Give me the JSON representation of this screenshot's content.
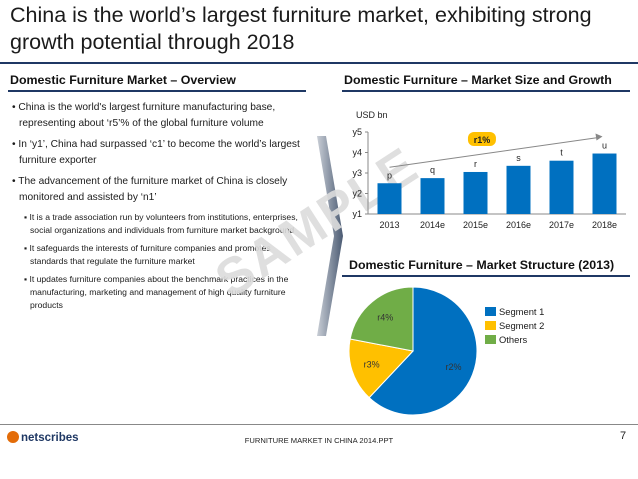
{
  "title": "China is the world’s largest furniture market, exhibiting strong growth potential through 2018",
  "left_section": {
    "heading": "Domestic Furniture Market – Overview",
    "bullets": [
      "China is the world's largest furniture manufacturing base, representing about ‘r5’% of the global furniture volume",
      "In ‘y1’, China had surpassed ‘c1’ to become the world’s largest furniture exporter",
      "The advancement of the furniture market of China is closely monitored and assisted by ‘n1’"
    ],
    "sub_bullets": [
      "It is a trade association run by volunteers from institutions, enterprises, social organizations and individuals from furniture market background",
      "It safeguards the interests of furniture companies and promotes standards that regulate the furniture market",
      "It updates furniture companies about the benchmark practices in the manufacturing, marketing and management of high quality furniture products"
    ]
  },
  "right_section": {
    "bar_heading": "Domestic Furniture – Market Size and Growth",
    "pie_heading": "Domestic Furniture – Market Structure (2013)"
  },
  "watermark": "SAMPLE",
  "chart_data": [
    {
      "type": "bar",
      "unit_label": "USD bn",
      "categories": [
        "2013",
        "2014e",
        "2015e",
        "2016e",
        "2017e",
        "2018e"
      ],
      "values": [
        2.5,
        2.75,
        3.05,
        3.35,
        3.6,
        3.95
      ],
      "data_labels": [
        "p",
        "q",
        "r",
        "s",
        "t",
        "u"
      ],
      "y_ticks": [
        "y1",
        "y2",
        "y3",
        "y4",
        "y5"
      ],
      "ylim": [
        1,
        5
      ],
      "growth_label": "r1%",
      "bar_color": "#0070c0",
      "grid": false
    },
    {
      "type": "pie",
      "labels": [
        "Segment 1",
        "Segment 2",
        "Others"
      ],
      "values": [
        62,
        16,
        22
      ],
      "slice_labels": [
        "r2%",
        "r3%",
        "r4%"
      ],
      "colors": [
        "#0070c0",
        "#ffc000",
        "#70ad47"
      ],
      "legend_position": "right"
    }
  ],
  "footer": {
    "logo": "netscribes",
    "text": "FURNITURE MARKET IN CHINA 2014.PPT",
    "page": "7"
  }
}
